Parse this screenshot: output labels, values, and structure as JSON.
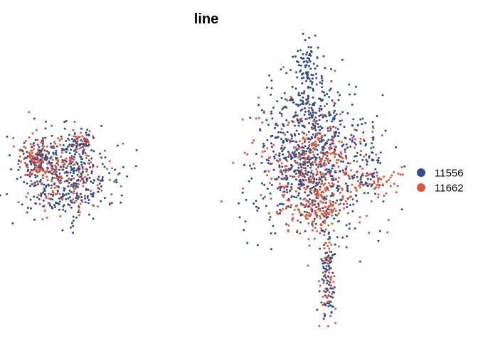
{
  "chart_data": {
    "type": "scatter",
    "title": "line",
    "xlabel": "",
    "ylabel": "",
    "grid": false,
    "legend_placement": "right",
    "series": [
      {
        "name": "11556",
        "color": "#2E4E8C",
        "clusters": [
          {
            "cx": -8.2,
            "cy": 1.2,
            "sx": 1.3,
            "sy": 1.2,
            "n": 360
          },
          {
            "cx": -9.3,
            "cy": 2.3,
            "sx": 0.5,
            "sy": 0.4,
            "n": 60
          },
          {
            "cx": -7.3,
            "cy": 3.0,
            "sx": 0.35,
            "sy": 0.4,
            "n": 50
          },
          {
            "cx": 4.5,
            "cy": 2.0,
            "sx": 1.5,
            "sy": 1.9,
            "n": 620
          },
          {
            "cx": 4.8,
            "cy": 5.2,
            "sx": 0.8,
            "sy": 1.0,
            "n": 140
          },
          {
            "cx": 4.3,
            "cy": 7.6,
            "sx": 0.3,
            "sy": 0.9,
            "n": 70
          },
          {
            "cx": 7.6,
            "cy": 2.1,
            "sx": 0.3,
            "sy": 0.9,
            "n": 40
          },
          {
            "cx": 5.4,
            "cy": -4.3,
            "sx": 0.2,
            "sy": 1.5,
            "n": 90
          }
        ]
      },
      {
        "name": "11662",
        "color": "#E0563B",
        "clusters": [
          {
            "cx": -8.0,
            "cy": 1.3,
            "sx": 1.2,
            "sy": 1.1,
            "n": 200
          },
          {
            "cx": -9.6,
            "cy": 2.3,
            "sx": 0.4,
            "sy": 0.5,
            "n": 90
          },
          {
            "cx": -7.3,
            "cy": 3.3,
            "sx": 0.3,
            "sy": 0.3,
            "n": 35
          },
          {
            "cx": 4.8,
            "cy": 1.5,
            "sx": 1.4,
            "sy": 1.7,
            "n": 460
          },
          {
            "cx": 5.0,
            "cy": -0.8,
            "sx": 0.6,
            "sy": 0.5,
            "n": 80
          },
          {
            "cx": 7.9,
            "cy": 1.0,
            "sx": 0.6,
            "sy": 0.3,
            "n": 50
          },
          {
            "cx": 5.4,
            "cy": -4.5,
            "sx": 0.2,
            "sy": 1.6,
            "n": 60
          }
        ]
      }
    ],
    "xlim": [
      -11,
      9
    ],
    "ylim": [
      -7,
      9
    ]
  }
}
